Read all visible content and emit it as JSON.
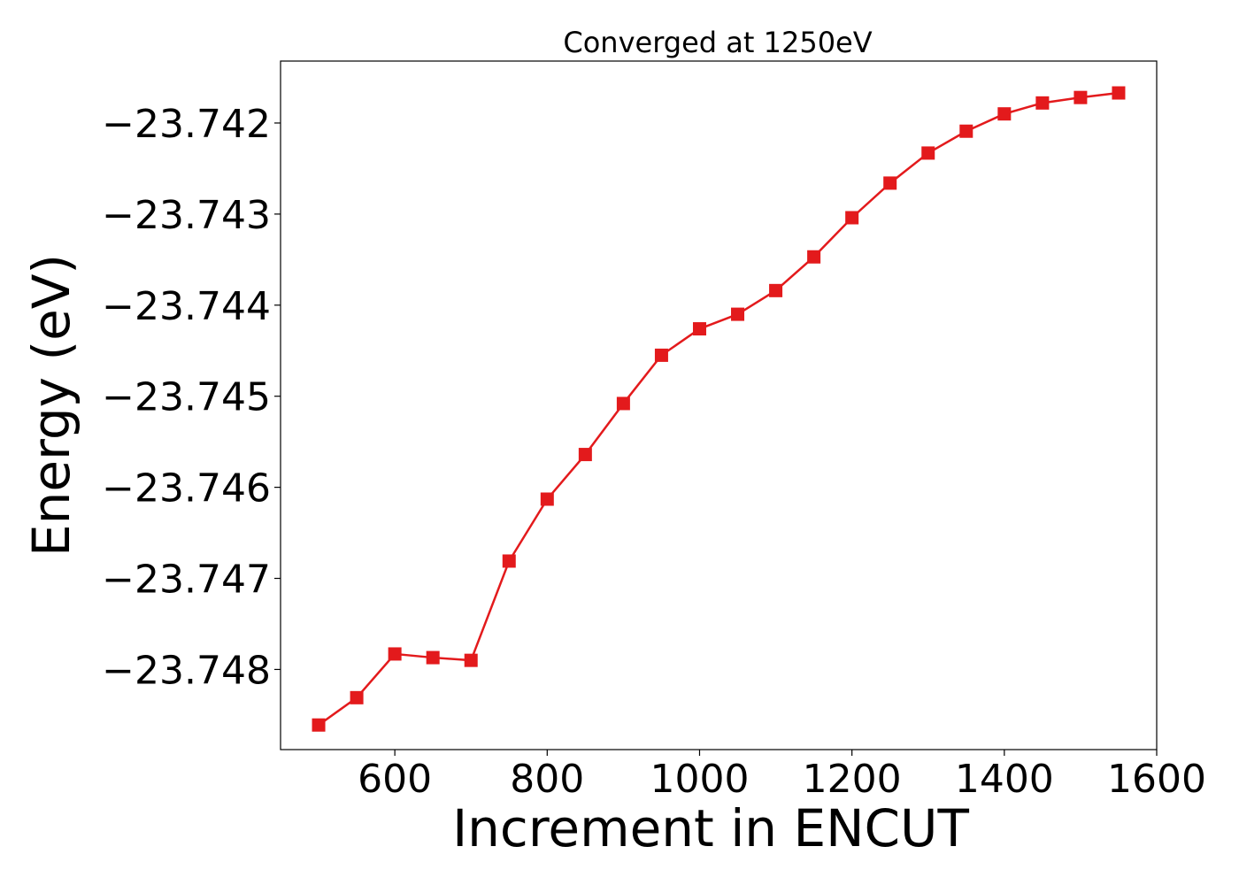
{
  "chart_data": {
    "type": "line",
    "title": "Converged at 1250eV",
    "xlabel": "Increment in ENCUT",
    "ylabel": "Energy (eV)",
    "xlim": [
      450,
      1600
    ],
    "ylim": [
      -23.74888,
      -23.74132
    ],
    "xticks": [
      600,
      800,
      1000,
      1200,
      1400,
      1600
    ],
    "xtick_labels": [
      "600",
      "800",
      "1000",
      "1200",
      "1400",
      "1600"
    ],
    "yticks": [
      -23.748,
      -23.747,
      -23.746,
      -23.745,
      -23.744,
      -23.743,
      -23.742
    ],
    "ytick_labels": [
      "−23.748",
      "−23.747",
      "−23.746",
      "−23.745",
      "−23.744",
      "−23.743",
      "−23.742"
    ],
    "grid": false,
    "series": [
      {
        "color": "#e31a1c",
        "marker": "square",
        "x": [
          500,
          550,
          600,
          650,
          700,
          750,
          800,
          850,
          900,
          950,
          1000,
          1050,
          1100,
          1150,
          1200,
          1250,
          1300,
          1350,
          1400,
          1450,
          1500,
          1550
        ],
        "y": [
          -23.74861,
          -23.74831,
          -23.74783,
          -23.74787,
          -23.7479,
          -23.74681,
          -23.74613,
          -23.74564,
          -23.74508,
          -23.74455,
          -23.74426,
          -23.7441,
          -23.74384,
          -23.74347,
          -23.74304,
          -23.74266,
          -23.74233,
          -23.74209,
          -23.7419,
          -23.74178,
          -23.74172,
          -23.74167
        ]
      }
    ]
  }
}
